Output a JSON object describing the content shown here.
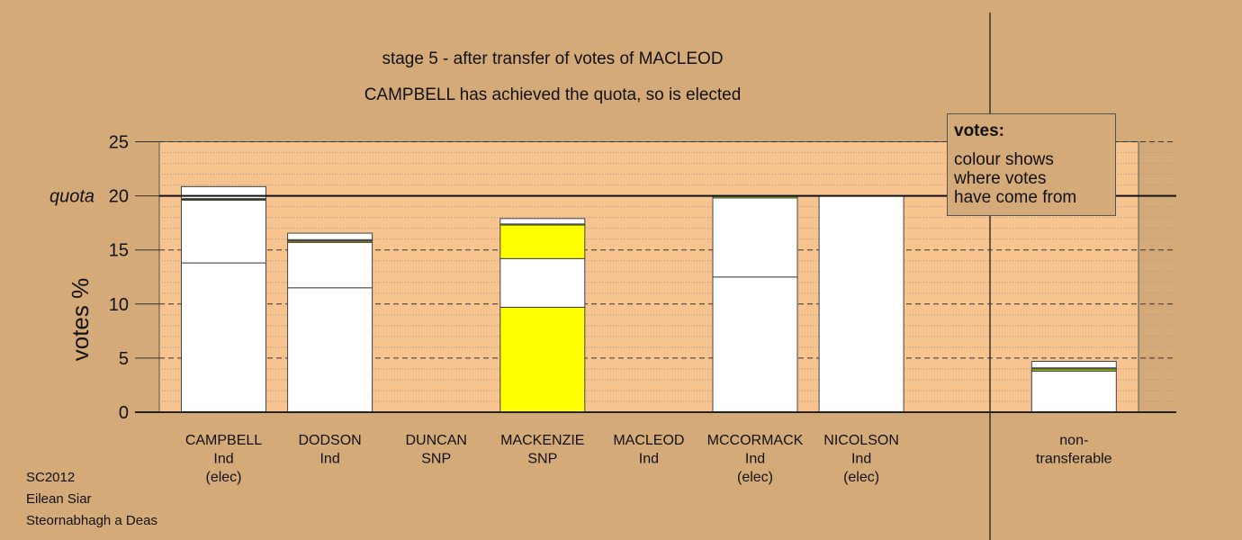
{
  "chart_data": {
    "type": "bar",
    "stacked": true,
    "title": "stage 5 - after transfer of votes of MACLEOD",
    "subtitle": "CAMPBELL has achieved the quota, so is elected",
    "ylabel": "votes %",
    "ylim": [
      0,
      25
    ],
    "yticks": [
      0,
      5,
      10,
      15,
      20,
      25
    ],
    "quota": 20,
    "quota_label": "quota",
    "categories": [
      [
        "CAMPBELL",
        "Ind",
        "(elec)"
      ],
      [
        "DODSON",
        "Ind"
      ],
      [
        "DUNCAN",
        "SNP"
      ],
      [
        "MACKENZIE",
        "SNP"
      ],
      [
        "MACLEOD",
        "Ind"
      ],
      [
        "MCCORMACK",
        "Ind",
        "(elec)"
      ],
      [
        "NICOLSON",
        "Ind",
        "(elec)"
      ],
      [],
      [
        "non-",
        "transferable"
      ]
    ],
    "bars": [
      [
        {
          "v": 13.8,
          "c": "#ffffff"
        },
        {
          "v": 5.8,
          "c": "#ffffff"
        },
        {
          "v": 0.15,
          "c": "#3a3a00"
        },
        {
          "v": 1.1,
          "c": "#ffffff"
        }
      ],
      [
        {
          "v": 11.5,
          "c": "#ffffff"
        },
        {
          "v": 4.2,
          "c": "#ffffff"
        },
        {
          "v": 0.15,
          "c": "#8a8a00"
        },
        {
          "v": 0.1,
          "c": "#cccc00"
        },
        {
          "v": 0.6,
          "c": "#ffffff"
        }
      ],
      [],
      [
        {
          "v": 9.7,
          "c": "#ffff00"
        },
        {
          "v": 4.5,
          "c": "#ffffff"
        },
        {
          "v": 3.1,
          "c": "#ffff00"
        },
        {
          "v": 0.1,
          "c": "#cccc00"
        },
        {
          "v": 0.5,
          "c": "#ffffff"
        }
      ],
      [],
      [
        {
          "v": 12.5,
          "c": "#ffffff"
        },
        {
          "v": 7.3,
          "c": "#ffffff"
        },
        {
          "v": 0.15,
          "c": "#99cc00"
        }
      ],
      [
        {
          "v": 20.0,
          "c": "#ffffff"
        }
      ],
      [],
      [
        {
          "v": 3.8,
          "c": "#ffffff"
        },
        {
          "v": 0.2,
          "c": "#99cc00"
        },
        {
          "v": 0.1,
          "c": "#cccc00"
        },
        {
          "v": 0.6,
          "c": "#ffffff"
        }
      ]
    ],
    "colors": {
      "background": "#d4aa78",
      "plot_area": "#f7c48f",
      "bar": "#ffffff",
      "transfer": "#ffff00"
    }
  },
  "legend": {
    "title": "votes:",
    "body": "colour shows\nwhere votes\nhave come from"
  },
  "source": [
    "SC2012",
    "Eilean Siar",
    "Steornabhagh a Deas"
  ]
}
